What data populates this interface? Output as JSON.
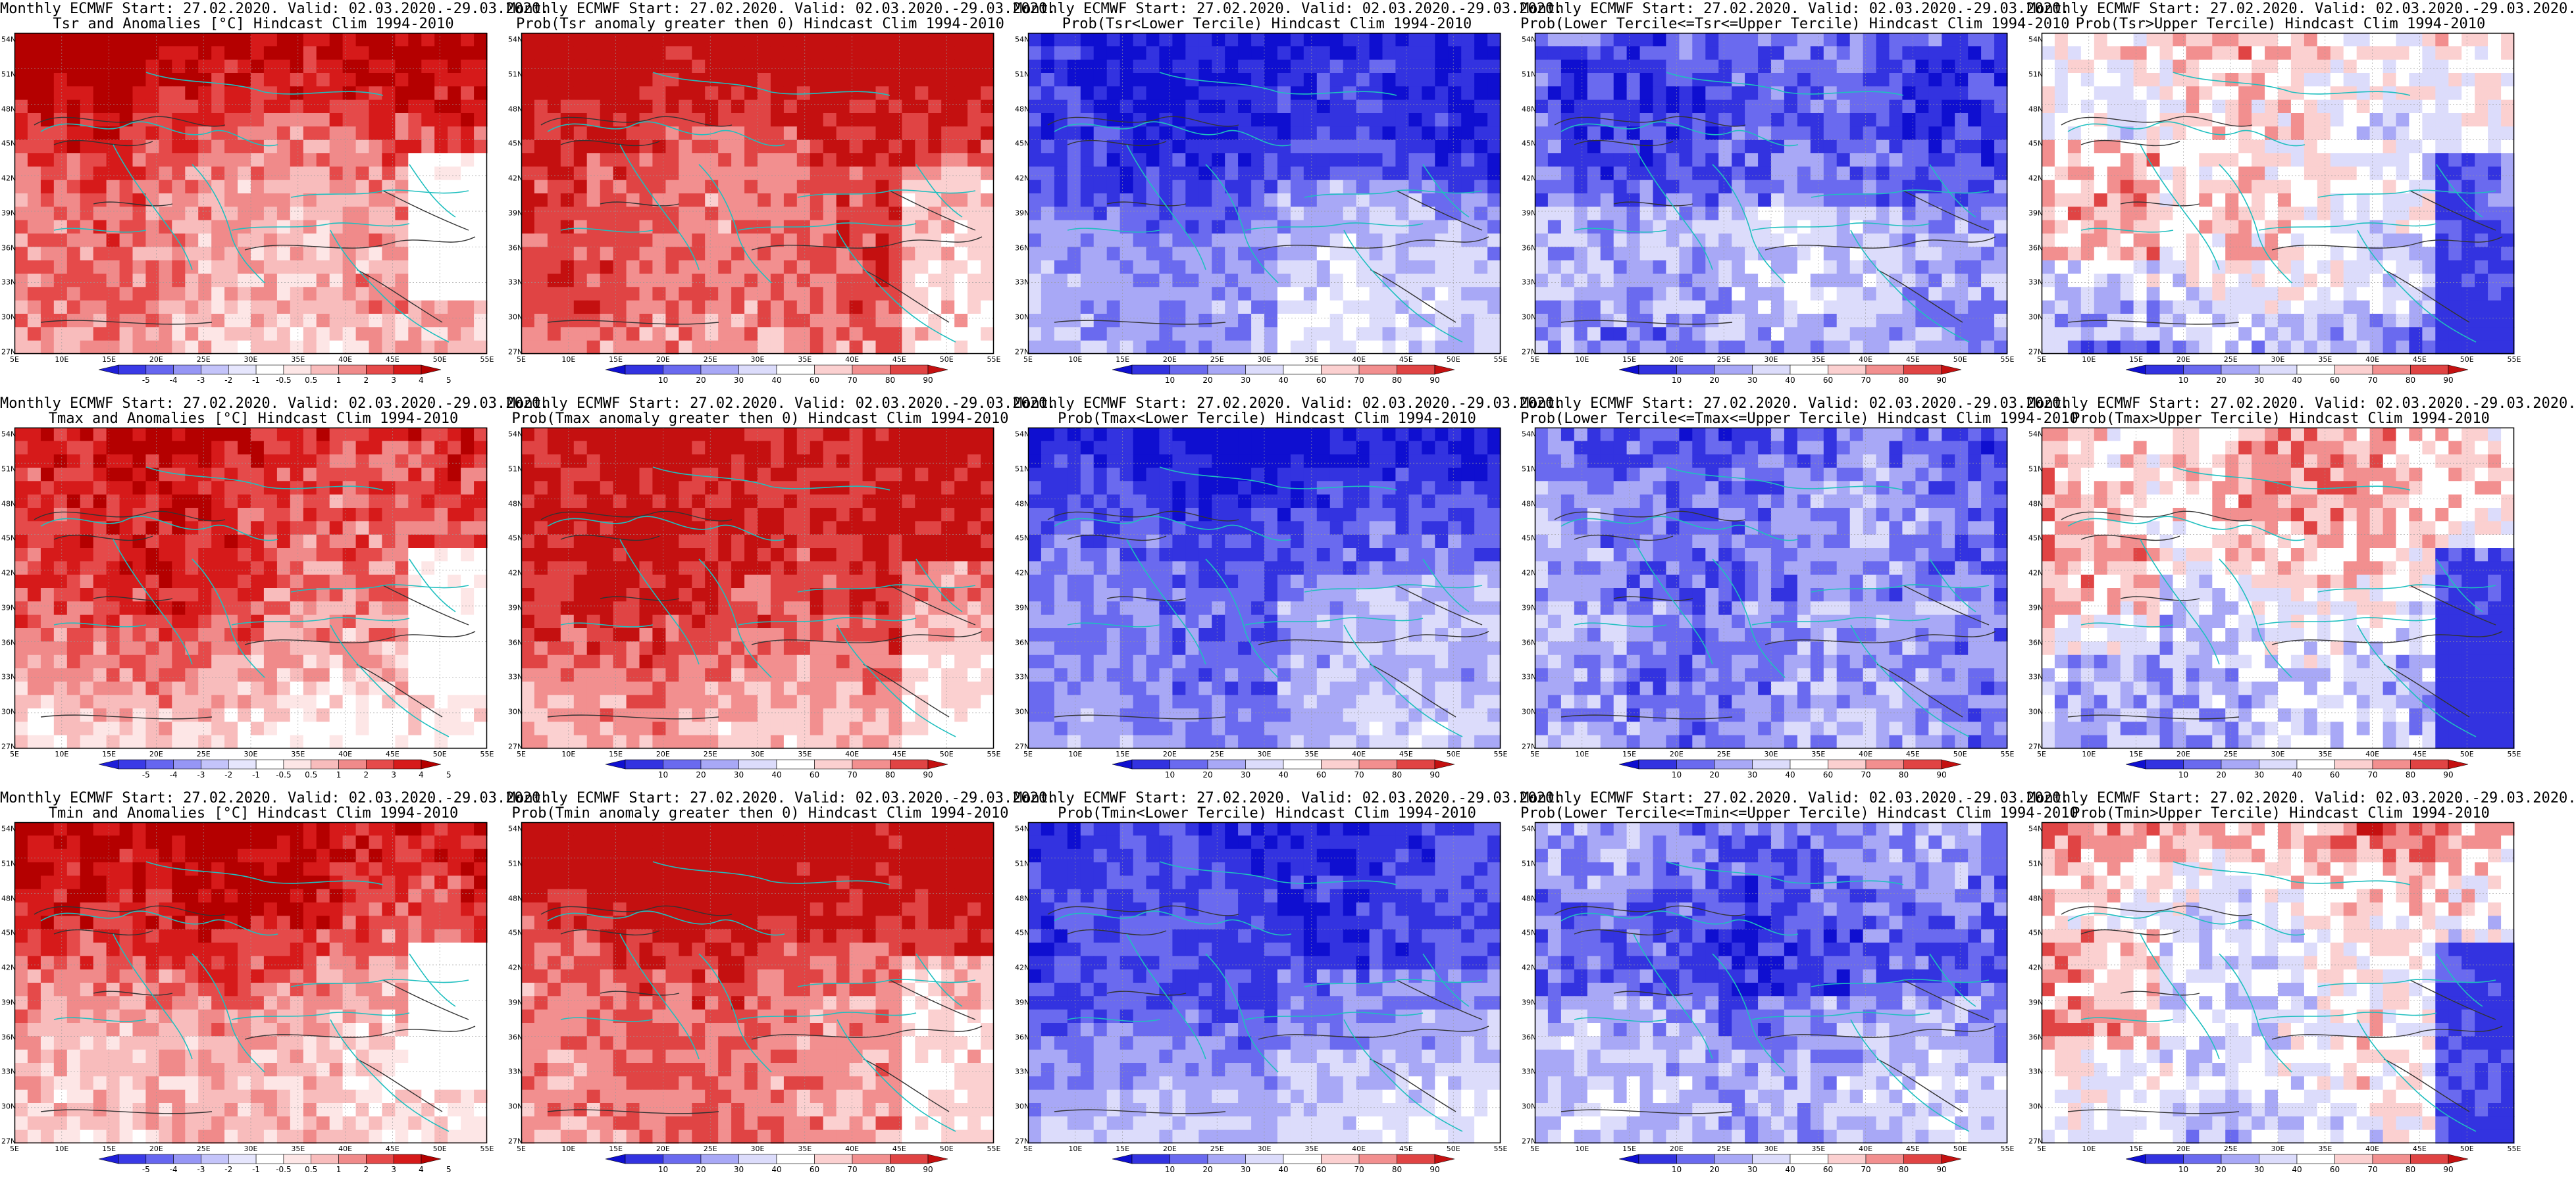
{
  "panels": [
    {
      "line1": "Monthly ECMWF Start: 27.02.2020. Valid: 02.03.2020.-29.03.2020.",
      "line2": "Tsr and Anomalies [°C] Hindcast Clim 1994-2010",
      "scheme": "anom",
      "labels": [
        "-5",
        "-4",
        "-3",
        "-2",
        "-1",
        "-0.5",
        "0.5",
        "1",
        "2",
        "3",
        "4",
        "5"
      ]
    },
    {
      "line1": "Monthly ECMWF Start: 27.02.2020. Valid: 02.03.2020.-29.03.2020.",
      "line2": "Prob(Tsr anomaly greater then 0) Hindcast Clim 1994-2010",
      "scheme": "probwarm",
      "labels": [
        "10",
        "20",
        "30",
        "40",
        "60",
        "70",
        "80",
        "90"
      ]
    },
    {
      "line1": "Monthly ECMWF Start: 27.02.2020. Valid: 02.03.2020.-29.03.2020.",
      "line2": "Prob(Tsr<Lower Tercile) Hindcast Clim 1994-2010",
      "scheme": "probcold",
      "labels": [
        "10",
        "20",
        "30",
        "40",
        "60",
        "70",
        "80",
        "90"
      ]
    },
    {
      "line1": "Monthly ECMWF Start: 27.02.2020. Valid: 02.03.2020.-29.03.2020.",
      "line2": "Prob(Lower Tercile<=Tsr<=Upper Tercile) Hindcast Clim 1994-2010",
      "scheme": "probmid",
      "labels": [
        "10",
        "20",
        "30",
        "40",
        "60",
        "70",
        "80",
        "90"
      ]
    },
    {
      "line1": "Monthly ECMWF Start: 27.02.2020. Valid: 02.03.2020.-29.03.2020.",
      "line2": "Prob(Tsr>Upper Tercile) Hindcast Clim 1994-2010",
      "scheme": "probup",
      "labels": [
        "10",
        "20",
        "30",
        "40",
        "60",
        "70",
        "80",
        "90"
      ]
    },
    {
      "line1": "Monthly ECMWF Start: 27.02.2020. Valid: 02.03.2020.-29.03.2020.",
      "line2": "Tmax and Anomalies [°C] Hindcast Clim 1994-2010",
      "scheme": "anom",
      "labels": [
        "-5",
        "-4",
        "-3",
        "-2",
        "-1",
        "-0.5",
        "0.5",
        "1",
        "2",
        "3",
        "4",
        "5"
      ]
    },
    {
      "line1": "Monthly ECMWF Start: 27.02.2020. Valid: 02.03.2020.-29.03.2020.",
      "line2": "Prob(Tmax anomaly greater then 0) Hindcast Clim 1994-2010",
      "scheme": "probwarm",
      "labels": [
        "10",
        "20",
        "30",
        "40",
        "60",
        "70",
        "80",
        "90"
      ]
    },
    {
      "line1": "Monthly ECMWF Start: 27.02.2020. Valid: 02.03.2020.-29.03.2020.",
      "line2": "Prob(Tmax<Lower Tercile) Hindcast Clim 1994-2010",
      "scheme": "probcold",
      "labels": [
        "10",
        "20",
        "30",
        "40",
        "60",
        "70",
        "80",
        "90"
      ]
    },
    {
      "line1": "Monthly ECMWF Start: 27.02.2020. Valid: 02.03.2020.-29.03.2020.",
      "line2": "Prob(Lower Tercile<=Tmax<=Upper Tercile) Hindcast Clim 1994-2010",
      "scheme": "probmid",
      "labels": [
        "10",
        "20",
        "30",
        "40",
        "60",
        "70",
        "80",
        "90"
      ]
    },
    {
      "line1": "Monthly ECMWF Start: 27.02.2020. Valid: 02.03.2020.-29.03.2020.",
      "line2": "Prob(Tmax>Upper Tercile) Hindcast Clim 1994-2010",
      "scheme": "probup",
      "labels": [
        "10",
        "20",
        "30",
        "40",
        "60",
        "70",
        "80",
        "90"
      ]
    },
    {
      "line1": "Monthly ECMWF Start: 27.02.2020. Valid: 02.03.2020.-29.03.2020.",
      "line2": "Tmin and Anomalies [°C] Hindcast Clim 1994-2010",
      "scheme": "anom",
      "labels": [
        "-5",
        "-4",
        "-3",
        "-2",
        "-1",
        "-0.5",
        "0.5",
        "1",
        "2",
        "3",
        "4",
        "5"
      ]
    },
    {
      "line1": "Monthly ECMWF Start: 27.02.2020. Valid: 02.03.2020.-29.03.2020.",
      "line2": "Prob(Tmin anomaly greater then 0) Hindcast Clim 1994-2010",
      "scheme": "probwarm",
      "labels": [
        "10",
        "20",
        "30",
        "40",
        "60",
        "70",
        "80",
        "90"
      ]
    },
    {
      "line1": "Monthly ECMWF Start: 27.02.2020. Valid: 02.03.2020.-29.03.2020.",
      "line2": "Prob(Tmin<Lower Tercile) Hindcast Clim 1994-2010",
      "scheme": "probcold",
      "labels": [
        "10",
        "20",
        "30",
        "40",
        "60",
        "70",
        "80",
        "90"
      ]
    },
    {
      "line1": "Monthly ECMWF Start: 27.02.2020. Valid: 02.03.2020.-29.03.2020.",
      "line2": "Prob(Lower Tercile<=Tmin<=Upper Tercile) Hindcast Clim 1994-2010",
      "scheme": "probmid",
      "labels": [
        "10",
        "20",
        "30",
        "40",
        "60",
        "70",
        "80",
        "90"
      ]
    },
    {
      "line1": "Monthly ECMWF Start: 27.02.2020. Valid: 02.03.2020.-29.03.2020.",
      "line2": "Prob(Tmin>Upper Tercile) Hindcast Clim 1994-2010",
      "scheme": "probup",
      "labels": [
        "10",
        "20",
        "30",
        "40",
        "60",
        "70",
        "80",
        "90"
      ]
    }
  ],
  "lon_labels": [
    "5E",
    "10E",
    "15E",
    "20E",
    "25E",
    "30E",
    "35E",
    "40E",
    "45E",
    "50E",
    "55E"
  ],
  "lat_labels": [
    "54N",
    "51N",
    "48N",
    "45N",
    "42N",
    "39N",
    "36N",
    "33N",
    "30N",
    "27N"
  ],
  "palettes": {
    "anom": [
      "#1f1fd8",
      "#3a3ae6",
      "#6666f0",
      "#9696f5",
      "#c4c4fa",
      "#e6e6fd",
      "#ffffff",
      "#fde6e6",
      "#f8bcbc",
      "#f08a8a",
      "#e54a4a",
      "#d61a1a",
      "#b40000"
    ],
    "prob": [
      "#0f0fd0",
      "#3333e0",
      "#6a6aef",
      "#a8a8f6",
      "#dcdcfb",
      "#ffffff",
      "#fbd0d0",
      "#f28f8f",
      "#e04444",
      "#c41010"
    ]
  },
  "colors": {
    "coast": "#1fbfbf",
    "contour": "#333333",
    "frame": "#000000"
  }
}
